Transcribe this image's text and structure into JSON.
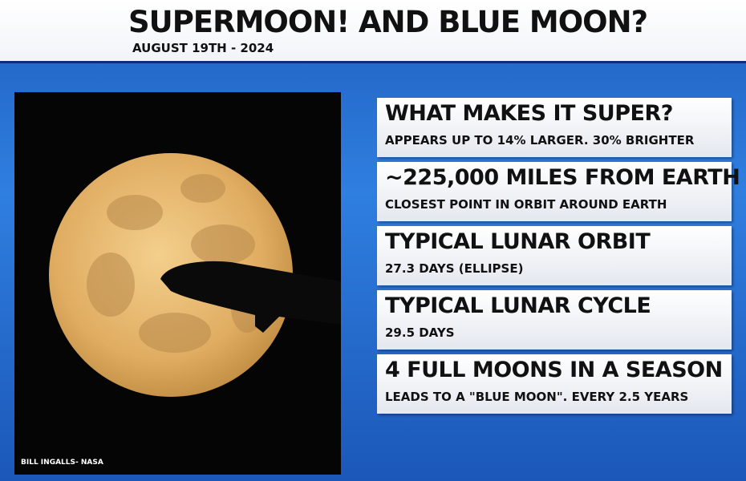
{
  "header": {
    "title": "SUPERMOON! AND BLUE MOON?",
    "subtitle": "AUGUST 19TH - 2024"
  },
  "photo": {
    "credit": "BILL INGALLS- NASA"
  },
  "facts": [
    {
      "heading": "WHAT MAKES IT SUPER?",
      "detail": "APPEARS UP TO 14% LARGER. 30% BRIGHTER"
    },
    {
      "heading": "~225,000 MILES FROM EARTH",
      "detail": "CLOSEST POINT IN ORBIT AROUND EARTH"
    },
    {
      "heading": "TYPICAL LUNAR ORBIT",
      "detail": "27.3 DAYS (ELLIPSE)"
    },
    {
      "heading": "TYPICAL LUNAR CYCLE",
      "detail": "29.5 DAYS"
    },
    {
      "heading": "4 FULL MOONS IN A SEASON",
      "detail": "LEADS TO A \"BLUE MOON\". EVERY 2.5 YEARS"
    }
  ]
}
